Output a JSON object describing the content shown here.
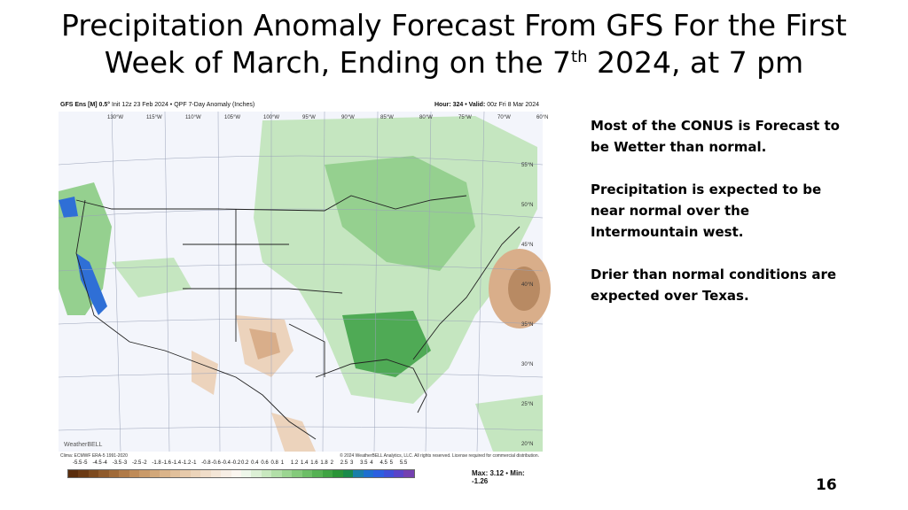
{
  "slide": {
    "title_line1": "Precipitation Anomaly Forecast From GFS For the First",
    "title_line2_pre": "Week of March, Ending on the 7",
    "title_sup": "th",
    "title_line2_post": "  2024, at 7 pm",
    "page_number": "16"
  },
  "map": {
    "header_left_bold": "GFS Ens [M] 0.5°",
    "header_left": " Init 12z 23 Feb 2024 • QPF 7-Day Anomaly (Inches)",
    "header_right_bold": "Hour: 324 • Valid:",
    "header_right": " 00z Fri 8 Mar 2024",
    "footer_left": "Clima: ECMWF ERA-5 1991-2020",
    "footer_right": "© 2024 WeatherBELL Analytics, LLC. All rights reserved. License required for commercial distribution.",
    "logo": "WeatherBELL",
    "max_label": "Max: 3.12",
    "min_label": "Min: -1.26",
    "lon_labels": [
      "130°W",
      "115°W",
      "110°W",
      "105°W",
      "100°W",
      "95°W",
      "90°W",
      "85°W",
      "80°W",
      "75°W",
      "70°W",
      "60°N"
    ],
    "lat_labels": [
      "55°N",
      "50°N",
      "45°N",
      "40°N",
      "35°N",
      "30°N",
      "25°N",
      "20°N"
    ],
    "scale_values": [
      "-5.5",
      "-5",
      "-4.5",
      "-4",
      "-3.5",
      "-3",
      "-2.5",
      "-2",
      "-1.8",
      "-1.6",
      "-1.4",
      "-1.2",
      "-1",
      "-0.8",
      "-0.6",
      "-0.4",
      "-0.2",
      "0.2",
      "0.4",
      "0.6",
      "0.8",
      "1",
      "1.2",
      "1.4",
      "1.6",
      "1.8",
      "2",
      "2.5",
      "3",
      "3.5",
      "4",
      "4.5",
      "5",
      "5.5"
    ],
    "scale_colors": [
      "#5a2d0c",
      "#6b3a14",
      "#7d4a1f",
      "#8f5a2b",
      "#a06a38",
      "#b07a47",
      "#bf8b58",
      "#c99a69",
      "#d2a87a",
      "#dab48a",
      "#e1c09b",
      "#e7caab",
      "#ecd4ba",
      "#f0ddc9",
      "#f4e6d7",
      "#f7eee5",
      "#fbf6f0",
      "#eef7ea",
      "#dcf0d5",
      "#c8e8bf",
      "#b2dfa8",
      "#9bd591",
      "#84ca7b",
      "#6cbe66",
      "#55b153",
      "#3fa343",
      "#2a9437",
      "#1a8a4a",
      "#1a7fa8",
      "#1e6fd0",
      "#2b5fe0",
      "#3f4fd8",
      "#5a44c8",
      "#7440b0"
    ],
    "anomaly_colors": {
      "wet_light": "#c5e6c0",
      "wet_mid": "#95d08f",
      "wet_dark": "#4faa55",
      "wet_blue": "#2f6fd6",
      "dry_light": "#ecd3bc",
      "dry_mid": "#d9ae8a"
    }
  },
  "notes": {
    "p1": "Most of the CONUS is Forecast to be Wetter than normal.",
    "p2": "Precipitation is expected to be near normal over the Intermountain west.",
    "p3": "Drier than normal conditions are expected over Texas."
  }
}
